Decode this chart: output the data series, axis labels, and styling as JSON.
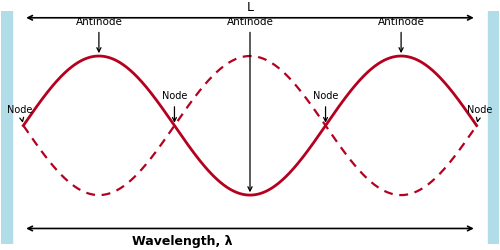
{
  "bg_color": "#ffffff",
  "wave_color": "#b5001f",
  "border_color": "#b0dde8",
  "text_color": "#000000",
  "title_L": "L",
  "label_wavelength": "Wavelength, λ",
  "node_label": "Node",
  "antinode_label": "Antinode",
  "figsize": [
    5.0,
    2.5
  ],
  "dpi": 100,
  "border_width": 8,
  "wave_linewidth": 2.0,
  "dash_linewidth": 1.6
}
